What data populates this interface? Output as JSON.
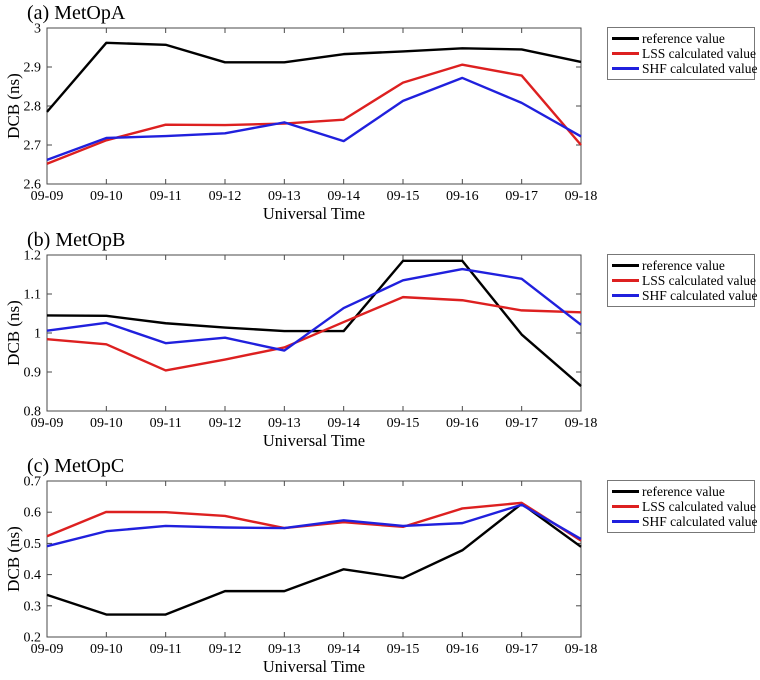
{
  "page": {
    "background": "#ffffff"
  },
  "legend": {
    "position": "outside-right",
    "items": [
      {
        "label": "reference value",
        "color": "#000000"
      },
      {
        "label": "LSS calculated value",
        "color": "#dd2020"
      },
      {
        "label": "SHF calculated value",
        "color": "#2020dd"
      }
    ]
  },
  "chart_data": [
    {
      "type": "line",
      "title": "(a) MetOpA",
      "xlabel": "Universal Time",
      "ylabel": "DCB (ns)",
      "x_categories": [
        "09-09",
        "09-10",
        "09-11",
        "09-12",
        "09-13",
        "09-14",
        "09-15",
        "09-16",
        "09-17",
        "09-18"
      ],
      "ylim": [
        2.6,
        3.0
      ],
      "yticks": [
        2.6,
        2.7,
        2.8,
        2.9,
        3
      ],
      "yticklabels": [
        "2.6",
        "2.7",
        "2.8",
        "2.9",
        "3"
      ],
      "grid": false,
      "legend_position": "outside-right",
      "series": [
        {
          "name": "reference value",
          "color": "#000000",
          "values": [
            2.785,
            2.962,
            2.957,
            2.912,
            2.912,
            2.933,
            2.94,
            2.948,
            2.945,
            2.913
          ]
        },
        {
          "name": "LSS calculated value",
          "color": "#dd2020",
          "values": [
            2.652,
            2.712,
            2.752,
            2.751,
            2.755,
            2.765,
            2.86,
            2.906,
            2.878,
            2.7
          ]
        },
        {
          "name": "SHF calculated value",
          "color": "#2020dd",
          "values": [
            2.662,
            2.718,
            2.723,
            2.73,
            2.758,
            2.71,
            2.813,
            2.872,
            2.808,
            2.722
          ]
        }
      ]
    },
    {
      "type": "line",
      "title": "(b) MetOpB",
      "xlabel": "Universal Time",
      "ylabel": "DCB (ns)",
      "x_categories": [
        "09-09",
        "09-10",
        "09-11",
        "09-12",
        "09-13",
        "09-14",
        "09-15",
        "09-16",
        "09-17",
        "09-18"
      ],
      "ylim": [
        0.8,
        1.2
      ],
      "yticks": [
        0.8,
        0.9,
        1,
        1.1,
        1.2
      ],
      "yticklabels": [
        "0.8",
        "0.9",
        "1",
        "1.1",
        "1.2"
      ],
      "grid": false,
      "legend_position": "outside-right",
      "series": [
        {
          "name": "reference value",
          "color": "#000000",
          "values": [
            1.045,
            1.044,
            1.025,
            1.014,
            1.005,
            1.005,
            1.185,
            1.185,
            0.996,
            0.864
          ]
        },
        {
          "name": "LSS calculated value",
          "color": "#dd2020",
          "values": [
            0.984,
            0.971,
            0.904,
            0.932,
            0.963,
            1.028,
            1.092,
            1.084,
            1.058,
            1.053
          ]
        },
        {
          "name": "SHF calculated value",
          "color": "#2020dd",
          "values": [
            1.006,
            1.026,
            0.974,
            0.988,
            0.955,
            1.064,
            1.135,
            1.164,
            1.139,
            1.021
          ]
        }
      ]
    },
    {
      "type": "line",
      "title": "(c) MetOpC",
      "xlabel": "Universal Time",
      "ylabel": "DCB (ns)",
      "x_categories": [
        "09-09",
        "09-10",
        "09-11",
        "09-12",
        "09-13",
        "09-14",
        "09-15",
        "09-16",
        "09-17",
        "09-18"
      ],
      "ylim": [
        0.2,
        0.7
      ],
      "yticks": [
        0.2,
        0.3,
        0.4,
        0.5,
        0.6,
        0.7
      ],
      "yticklabels": [
        "0.2",
        "0.3",
        "0.4",
        "0.5",
        "0.6",
        "0.7"
      ],
      "grid": false,
      "legend_position": "outside-right",
      "series": [
        {
          "name": "reference value",
          "color": "#000000",
          "values": [
            0.335,
            0.272,
            0.272,
            0.347,
            0.347,
            0.417,
            0.389,
            0.478,
            0.627,
            0.489
          ]
        },
        {
          "name": "LSS calculated value",
          "color": "#dd2020",
          "values": [
            0.523,
            0.601,
            0.6,
            0.588,
            0.549,
            0.568,
            0.553,
            0.612,
            0.63,
            0.509
          ]
        },
        {
          "name": "SHF calculated value",
          "color": "#2020dd",
          "values": [
            0.491,
            0.539,
            0.556,
            0.551,
            0.549,
            0.574,
            0.556,
            0.565,
            0.624,
            0.514
          ]
        }
      ]
    }
  ]
}
